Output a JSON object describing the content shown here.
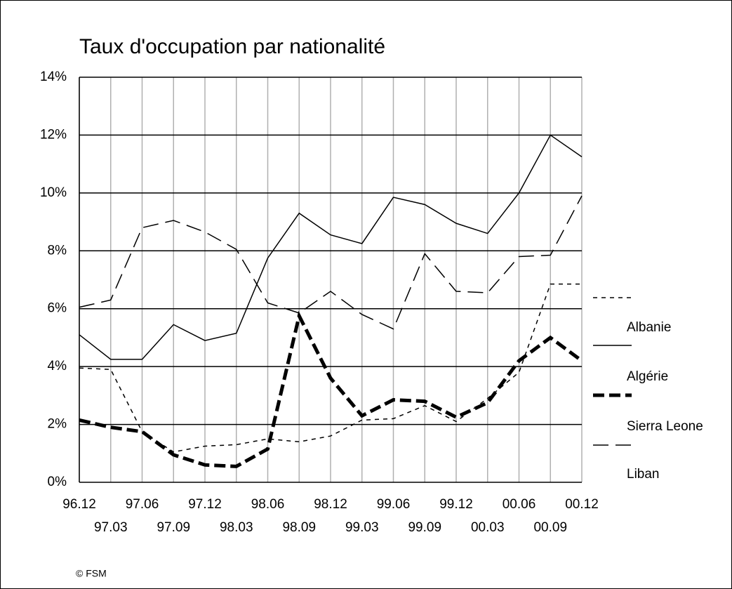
{
  "chart_data": {
    "type": "line",
    "title": "Taux d'occupation par nationalité",
    "categories": [
      "96.12",
      "97.03",
      "97.06",
      "97.09",
      "97.12",
      "98.03",
      "98.06",
      "98.09",
      "98.12",
      "99.03",
      "99.06",
      "99.09",
      "99.12",
      "00.03",
      "00.06",
      "00.09",
      "00.12"
    ],
    "series": [
      {
        "name": "Albanie",
        "color": "#000000",
        "values": [
          5.1,
          4.25,
          4.25,
          5.45,
          4.9,
          5.15,
          7.75,
          9.3,
          8.55,
          8.25,
          9.85,
          9.6,
          8.95,
          8.6,
          10.0,
          12.0,
          11.25
        ]
      },
      {
        "name": "Algérie",
        "color": "#000000",
        "values": [
          2.15,
          1.9,
          1.75,
          0.95,
          0.6,
          0.55,
          1.15,
          5.75,
          3.6,
          2.3,
          2.85,
          2.8,
          2.25,
          2.75,
          4.2,
          5.0,
          4.2
        ]
      },
      {
        "name": "Sierra Leone",
        "color": "#000000",
        "values": [
          6.05,
          6.3,
          8.8,
          9.05,
          8.65,
          8.05,
          6.2,
          5.85,
          6.6,
          5.8,
          5.3,
          7.9,
          6.6,
          6.55,
          7.8,
          7.85,
          9.9
        ]
      },
      {
        "name": "Liban",
        "color": "#000000",
        "values": [
          3.95,
          3.9,
          1.75,
          1.05,
          1.25,
          1.3,
          1.5,
          1.4,
          1.6,
          2.15,
          2.2,
          2.65,
          2.1,
          2.9,
          3.8,
          6.85,
          6.85
        ]
      }
    ],
    "ylim": [
      0,
      14
    ],
    "yticks": [
      {
        "value": 0,
        "label": "0%"
      },
      {
        "value": 2,
        "label": "2%"
      },
      {
        "value": 4,
        "label": "4%"
      },
      {
        "value": 6,
        "label": "6%"
      },
      {
        "value": 8,
        "label": "8%"
      },
      {
        "value": 10,
        "label": "10%"
      },
      {
        "value": 12,
        "label": "12%"
      },
      {
        "value": 14,
        "label": "14%"
      }
    ],
    "grid": true,
    "footer": "© FSM"
  }
}
